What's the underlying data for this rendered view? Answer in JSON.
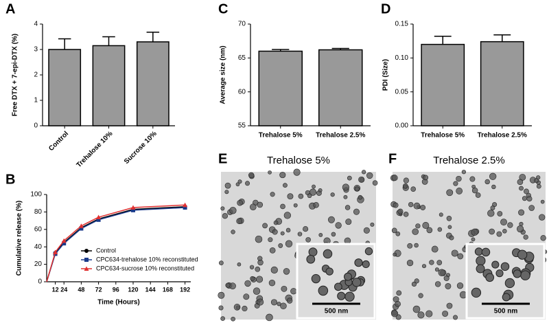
{
  "chart_data": [
    {
      "type": "bar",
      "panel": "A",
      "ylabel": "Free DTX + 7-epi-DTX  (%)",
      "categories": [
        "Control",
        "Trehalose 10%",
        "Sucrose 10%"
      ],
      "values": [
        3.0,
        3.15,
        3.3
      ],
      "errors": [
        0.42,
        0.35,
        0.38
      ],
      "color": "#999999",
      "ylim": [
        0,
        4
      ],
      "yticks": [
        0,
        1,
        2,
        3,
        4
      ]
    },
    {
      "type": "line",
      "panel": "B",
      "xlabel": "Time (Hours)",
      "ylabel": "Cumulative release (%)",
      "x": [
        0,
        12,
        24,
        48,
        72,
        120,
        192
      ],
      "series": [
        {
          "name": "Control",
          "color": "#000000",
          "marker": "circle",
          "values": [
            0,
            33,
            45,
            62,
            72,
            83,
            86
          ]
        },
        {
          "name": "CPC634-trehalose 10% reconstituted",
          "color": "#1a3a8a",
          "marker": "square",
          "values": [
            0,
            32,
            44,
            61,
            71,
            82,
            85
          ]
        },
        {
          "name": "CPC634-sucrose 10% reconstituted",
          "color": "#e03030",
          "marker": "triangle",
          "values": [
            0,
            34,
            47,
            64,
            74,
            85,
            88
          ]
        }
      ],
      "xlim": [
        0,
        200
      ],
      "xticks": [
        12,
        24,
        48,
        72,
        96,
        120,
        144,
        168,
        192
      ],
      "ylim": [
        0,
        100
      ],
      "yticks": [
        0,
        20,
        40,
        60,
        80,
        100
      ]
    },
    {
      "type": "bar",
      "panel": "C",
      "ylabel": "Average size (nm)",
      "categories": [
        "Trehalose 5%",
        "Trehalose 2.5%"
      ],
      "values": [
        66.0,
        66.2
      ],
      "errors": [
        0.25,
        0.2
      ],
      "color": "#999999",
      "ylim": [
        55,
        70
      ],
      "yticks": [
        55,
        60,
        65,
        70
      ]
    },
    {
      "type": "bar",
      "panel": "D",
      "ylabel": "PDI (Size)",
      "categories": [
        "Trehalose 5%",
        "Trehalose 2.5%"
      ],
      "values": [
        0.12,
        0.124
      ],
      "errors": [
        0.012,
        0.01
      ],
      "color": "#999999",
      "ylim": [
        0,
        0.15
      ],
      "yticks": [
        {
          "value": 0,
          "label": "0.00"
        },
        0.05,
        {
          "value": 0.1,
          "label": "0.10"
        },
        0.15
      ]
    }
  ],
  "images": [
    {
      "panel": "E",
      "title": "Trehalose 5%",
      "scale_bar": "500 nm"
    },
    {
      "panel": "F",
      "title": "Trehalose 2.5%",
      "scale_bar": "500 nm"
    }
  ]
}
